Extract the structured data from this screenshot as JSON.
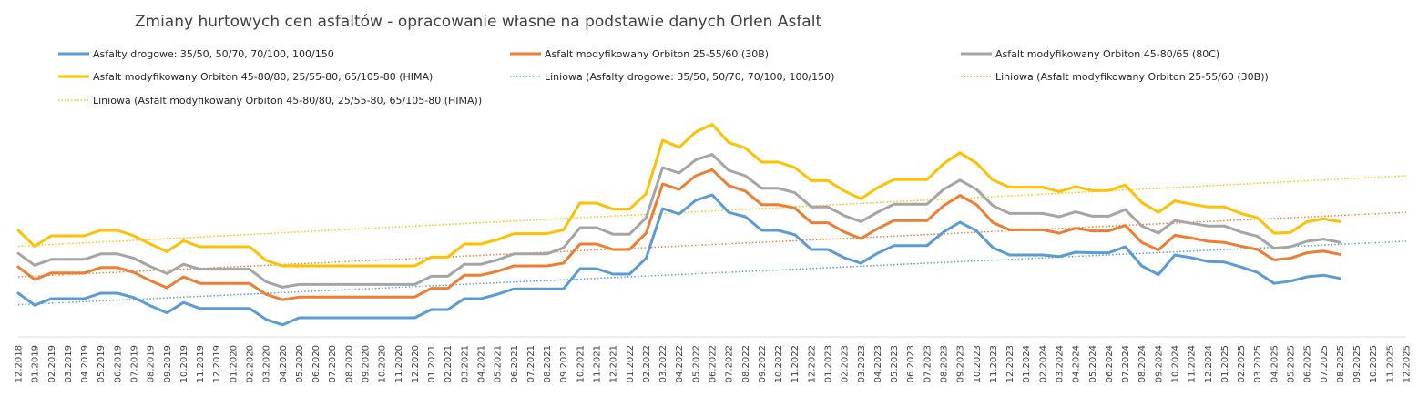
{
  "chart_data": {
    "type": "line",
    "title": "Zmiany hurtowych cen asfaltów - opracowanie własne na podstawie danych Orlen Asfalt",
    "xlabel": "",
    "ylabel": "",
    "grid": false,
    "legend_position": "top",
    "y_axis_labels": "none",
    "categories": [
      "12.2018",
      "01.2019",
      "02.2019",
      "03.2019",
      "04.2019",
      "05.2019",
      "06.2019",
      "07.2019",
      "08.2019",
      "09.2019",
      "10.2019",
      "11.2019",
      "12.2019",
      "01.2020",
      "02.2020",
      "03.2020",
      "04.2020",
      "05.2020",
      "06.2020",
      "07.2020",
      "08.2020",
      "09.2020",
      "10.2020",
      "11.2020",
      "12.2020",
      "01.2021",
      "02.2021",
      "03.2021",
      "04.2021",
      "05.2021",
      "06.2021",
      "07.2021",
      "08.2021",
      "09.2021",
      "10.2021",
      "11.2021",
      "12.2021",
      "01.2022",
      "02.2022",
      "03.2022",
      "04.2022",
      "05.2022",
      "06.2022",
      "07.2022",
      "08.2022",
      "09.2022",
      "10.2022",
      "11.2022",
      "12.2022",
      "01.2023",
      "02.2023",
      "03.2023",
      "04.2023",
      "05.2023",
      "06.2023",
      "07.2023",
      "08.2023",
      "09.2023",
      "10.2023",
      "11.2023",
      "12.2023",
      "01.2024",
      "02.2024",
      "03.2024",
      "04.2024",
      "05.2024",
      "06.2024",
      "07.2024",
      "08.2024",
      "09.2024",
      "10.2024",
      "11.2024",
      "12.2024",
      "01.2025",
      "02.2025",
      "03.2025",
      "04.2025",
      "05.2025",
      "06.2025",
      "07.2025",
      "08.2025",
      "09.2025",
      "10.2025",
      "11.2025",
      "12.2025"
    ],
    "series": [
      {
        "name": "Asfalty drogowe: 35/50, 50/70, 70/100, 100/150",
        "color": "#5B9BD5",
        "style": "solid",
        "values": [
          2000,
          1780,
          1900,
          1900,
          1900,
          2000,
          2000,
          1920,
          1770,
          1640,
          1830,
          1720,
          1720,
          1720,
          1720,
          1520,
          1420,
          1550,
          1550,
          1550,
          1550,
          1550,
          1550,
          1550,
          1550,
          1700,
          1700,
          1900,
          1900,
          1980,
          2080,
          2080,
          2080,
          2080,
          2450,
          2450,
          2350,
          2350,
          2640,
          3550,
          3450,
          3700,
          3800,
          3480,
          3400,
          3150,
          3150,
          3070,
          2800,
          2800,
          2650,
          2550,
          2730,
          2870,
          2870,
          2870,
          3120,
          3300,
          3140,
          2830,
          2700,
          2700,
          2700,
          2670,
          2750,
          2740,
          2740,
          2850,
          2500,
          2340,
          2700,
          2650,
          2580,
          2570,
          2480,
          2380,
          2180,
          2220,
          2300,
          2330,
          2270,
          null,
          null,
          null,
          null
        ]
      },
      {
        "name": "Asfalt modyfikowany Orbiton 25-55/60 (30B)",
        "color": "#ED7D31",
        "style": "solid",
        "values": [
          2480,
          2250,
          2370,
          2370,
          2370,
          2470,
          2470,
          2380,
          2230,
          2100,
          2300,
          2180,
          2180,
          2180,
          2180,
          1980,
          1880,
          1930,
          1930,
          1930,
          1930,
          1930,
          1930,
          1930,
          1930,
          2090,
          2090,
          2330,
          2330,
          2400,
          2500,
          2500,
          2500,
          2550,
          2900,
          2900,
          2800,
          2800,
          3100,
          4000,
          3900,
          4150,
          4260,
          3970,
          3870,
          3620,
          3620,
          3560,
          3290,
          3290,
          3120,
          3000,
          3180,
          3330,
          3330,
          3330,
          3600,
          3790,
          3620,
          3290,
          3160,
          3160,
          3160,
          3100,
          3190,
          3140,
          3140,
          3240,
          2930,
          2790,
          3060,
          3010,
          2950,
          2930,
          2860,
          2800,
          2610,
          2640,
          2740,
          2770,
          2710,
          null,
          null,
          null,
          null
        ]
      },
      {
        "name": "Asfalt modyfikowany Orbiton 45-80/65 (80C)",
        "color": "#A5A5A5",
        "style": "solid",
        "values": [
          2730,
          2510,
          2620,
          2620,
          2620,
          2720,
          2720,
          2640,
          2490,
          2360,
          2530,
          2440,
          2440,
          2440,
          2440,
          2210,
          2110,
          2160,
          2160,
          2160,
          2160,
          2160,
          2160,
          2160,
          2160,
          2310,
          2310,
          2530,
          2530,
          2610,
          2720,
          2720,
          2720,
          2830,
          3200,
          3200,
          3080,
          3080,
          3380,
          4300,
          4200,
          4440,
          4540,
          4250,
          4150,
          3920,
          3920,
          3840,
          3580,
          3580,
          3420,
          3310,
          3480,
          3630,
          3630,
          3630,
          3900,
          4070,
          3900,
          3600,
          3460,
          3460,
          3460,
          3400,
          3490,
          3410,
          3410,
          3530,
          3230,
          3100,
          3330,
          3280,
          3230,
          3230,
          3120,
          3040,
          2820,
          2850,
          2950,
          2990,
          2930,
          null,
          null,
          null,
          null
        ]
      },
      {
        "name": "Asfalt modyfikowany Orbiton 45-80/80, 25/55-80, 65/105-80 (HIMA)",
        "color": "#FFC000",
        "style": "solid",
        "values": [
          3150,
          2860,
          3050,
          3050,
          3050,
          3150,
          3150,
          3050,
          2900,
          2760,
          2960,
          2850,
          2850,
          2850,
          2850,
          2600,
          2500,
          2500,
          2500,
          2500,
          2500,
          2500,
          2500,
          2500,
          2500,
          2660,
          2660,
          2900,
          2900,
          2980,
          3090,
          3090,
          3090,
          3160,
          3650,
          3650,
          3540,
          3540,
          3820,
          4800,
          4670,
          4950,
          5090,
          4760,
          4660,
          4400,
          4400,
          4300,
          4060,
          4060,
          3870,
          3730,
          3930,
          4080,
          4080,
          4080,
          4370,
          4570,
          4380,
          4070,
          3940,
          3940,
          3940,
          3860,
          3950,
          3880,
          3880,
          3980,
          3660,
          3480,
          3690,
          3630,
          3580,
          3580,
          3460,
          3380,
          3100,
          3110,
          3310,
          3360,
          3310,
          null,
          null,
          null,
          null
        ]
      },
      {
        "name": "Liniowa (Asfalty drogowe: 35/50, 50/70, 70/100, 100/150)",
        "color": "#5B9BD5",
        "style": "dotted",
        "trendline": true,
        "values": [
          1790,
          null,
          null,
          null,
          null,
          null,
          null,
          null,
          null,
          null,
          null,
          null,
          null,
          null,
          null,
          null,
          null,
          null,
          null,
          null,
          null,
          null,
          null,
          null,
          null,
          null,
          null,
          null,
          null,
          null,
          null,
          null,
          null,
          null,
          null,
          null,
          null,
          null,
          null,
          null,
          null,
          null,
          null,
          null,
          null,
          null,
          null,
          null,
          null,
          null,
          null,
          null,
          null,
          null,
          null,
          null,
          null,
          null,
          null,
          null,
          null,
          null,
          null,
          null,
          null,
          null,
          null,
          null,
          null,
          null,
          null,
          null,
          null,
          null,
          null,
          null,
          null,
          null,
          null,
          null,
          null,
          null,
          null,
          null,
          2950
        ]
      },
      {
        "name": "Liniowa (Asfalt modyfikowany Orbiton 25-55/60 (30B))",
        "color": "#ED7D31",
        "style": "dotted",
        "trendline": true,
        "values": [
          2300,
          null,
          null,
          null,
          null,
          null,
          null,
          null,
          null,
          null,
          null,
          null,
          null,
          null,
          null,
          null,
          null,
          null,
          null,
          null,
          null,
          null,
          null,
          null,
          null,
          null,
          null,
          null,
          null,
          null,
          null,
          null,
          null,
          null,
          null,
          null,
          null,
          null,
          null,
          null,
          null,
          null,
          null,
          null,
          null,
          null,
          null,
          null,
          null,
          null,
          null,
          null,
          null,
          null,
          null,
          null,
          null,
          null,
          null,
          null,
          null,
          null,
          null,
          null,
          null,
          null,
          null,
          null,
          null,
          null,
          null,
          null,
          null,
          null,
          null,
          null,
          null,
          null,
          null,
          null,
          null,
          null,
          null,
          null,
          3480
        ]
      },
      {
        "name": "Liniowa (Asfalt modyfikowany Orbiton 45-80/80, 25/55-80, 65/105-80 (HIMA))",
        "color": "#FFC000",
        "style": "dotted",
        "trendline": true,
        "values": [
          2860,
          null,
          null,
          null,
          null,
          null,
          null,
          null,
          null,
          null,
          null,
          null,
          null,
          null,
          null,
          null,
          null,
          null,
          null,
          null,
          null,
          null,
          null,
          null,
          null,
          null,
          null,
          null,
          null,
          null,
          null,
          null,
          null,
          null,
          null,
          null,
          null,
          null,
          null,
          null,
          null,
          null,
          null,
          null,
          null,
          null,
          null,
          null,
          null,
          null,
          null,
          null,
          null,
          null,
          null,
          null,
          null,
          null,
          null,
          null,
          null,
          null,
          null,
          null,
          null,
          null,
          null,
          null,
          null,
          null,
          null,
          null,
          null,
          null,
          null,
          null,
          null,
          null,
          null,
          null,
          null,
          null,
          null,
          null,
          4150
        ]
      }
    ],
    "ylim": [
      1200,
      5500
    ]
  }
}
